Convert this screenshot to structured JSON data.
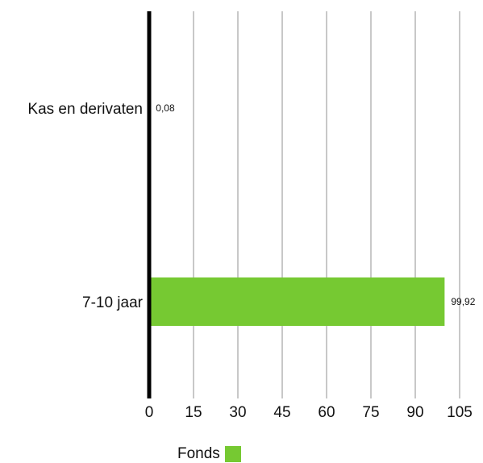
{
  "chart_data": {
    "type": "bar",
    "orientation": "horizontal",
    "categories": [
      "Kas en derivaten",
      "7-10 jaar"
    ],
    "series": [
      {
        "name": "Fonds",
        "values": [
          0.08,
          99.92
        ],
        "value_labels": [
          "0,08",
          "99,92"
        ],
        "color": "#76c932"
      }
    ],
    "xlim": [
      0,
      105
    ],
    "xticks": [
      0,
      15,
      30,
      45,
      60,
      75,
      90,
      105
    ],
    "grid": true,
    "gridColor": "#c8c8c8",
    "axisColor": "#000000",
    "legend_position": "bottom"
  }
}
